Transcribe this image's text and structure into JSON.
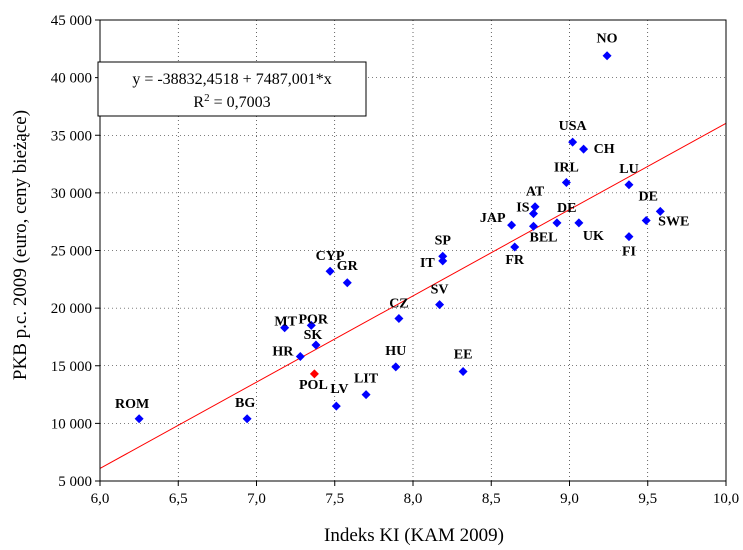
{
  "chart_data": {
    "type": "scatter",
    "xlabel": "Indeks KI (KAM 2009)",
    "ylabel": "PKB p.c. 2009 (euro, ceny bieżące)",
    "xlim": [
      6.0,
      10.0
    ],
    "ylim": [
      5000,
      45000
    ],
    "x_ticks": [
      "6,0",
      "6,5",
      "7,0",
      "7,5",
      "8,0",
      "8,5",
      "9,0",
      "9,5",
      "10,0"
    ],
    "x_tick_values": [
      6.0,
      6.5,
      7.0,
      7.5,
      8.0,
      8.5,
      9.0,
      9.5,
      10.0
    ],
    "y_ticks": [
      "5 000",
      "10 000",
      "15 000",
      "20 000",
      "25 000",
      "30 000",
      "35 000",
      "40 000",
      "45 000"
    ],
    "y_tick_values": [
      5000,
      10000,
      15000,
      20000,
      25000,
      30000,
      35000,
      40000,
      45000
    ],
    "grid": true,
    "regression": {
      "intercept": -38832.4518,
      "slope": 7487.001,
      "equation_text": "y = -38832,4518 + 7487,001*x",
      "r2_prefix": "R",
      "r2_exp": "2",
      "r2_value": " = 0,7003"
    },
    "points": [
      {
        "label": "NO",
        "x": 9.24,
        "y": 41900
      },
      {
        "label": "USA",
        "x": 9.02,
        "y": 34400
      },
      {
        "label": "CH",
        "x": 9.09,
        "y": 33800
      },
      {
        "label": "IRL",
        "x": 8.98,
        "y": 30900
      },
      {
        "label": "LU",
        "x": 9.38,
        "y": 30700
      },
      {
        "label": "AT",
        "x": 8.78,
        "y": 28800
      },
      {
        "label": "IS",
        "x": 8.77,
        "y": 28200
      },
      {
        "label": "DE",
        "x": 9.58,
        "y": 28400
      },
      {
        "label": "SWE",
        "x": 9.49,
        "y": 27600
      },
      {
        "label": "DE",
        "x": 8.92,
        "y": 27400
      },
      {
        "label": "UK",
        "x": 9.06,
        "y": 27400
      },
      {
        "label": "JAP",
        "x": 8.63,
        "y": 27200
      },
      {
        "label": "BEL",
        "x": 8.77,
        "y": 27100
      },
      {
        "label": "FI",
        "x": 9.38,
        "y": 26200
      },
      {
        "label": "FR",
        "x": 8.65,
        "y": 25300
      },
      {
        "label": "SP",
        "x": 8.19,
        "y": 24500
      },
      {
        "label": "IT",
        "x": 8.19,
        "y": 24100
      },
      {
        "label": "CYP",
        "x": 7.47,
        "y": 23200
      },
      {
        "label": "GR",
        "x": 7.58,
        "y": 22200
      },
      {
        "label": "SV",
        "x": 8.17,
        "y": 20300
      },
      {
        "label": "CZ",
        "x": 7.91,
        "y": 19100
      },
      {
        "label": "MT",
        "x": 7.18,
        "y": 18300
      },
      {
        "label": "POR",
        "x": 7.35,
        "y": 18500
      },
      {
        "label": "SK",
        "x": 7.38,
        "y": 16800
      },
      {
        "label": "HR",
        "x": 7.28,
        "y": 15800
      },
      {
        "label": "HU",
        "x": 7.89,
        "y": 14900
      },
      {
        "label": "EE",
        "x": 8.32,
        "y": 14500
      },
      {
        "label": "POL",
        "x": 7.37,
        "y": 14300,
        "highlight": true
      },
      {
        "label": "LIT",
        "x": 7.7,
        "y": 12500
      },
      {
        "label": "LV",
        "x": 7.51,
        "y": 11500
      },
      {
        "label": "ROM",
        "x": 6.25,
        "y": 10400
      },
      {
        "label": "BG",
        "x": 6.94,
        "y": 10400
      }
    ],
    "colors": {
      "point": "#0000ff",
      "highlight": "#ff0000",
      "regression_line": "#ff0000",
      "grid": "#000000"
    }
  }
}
